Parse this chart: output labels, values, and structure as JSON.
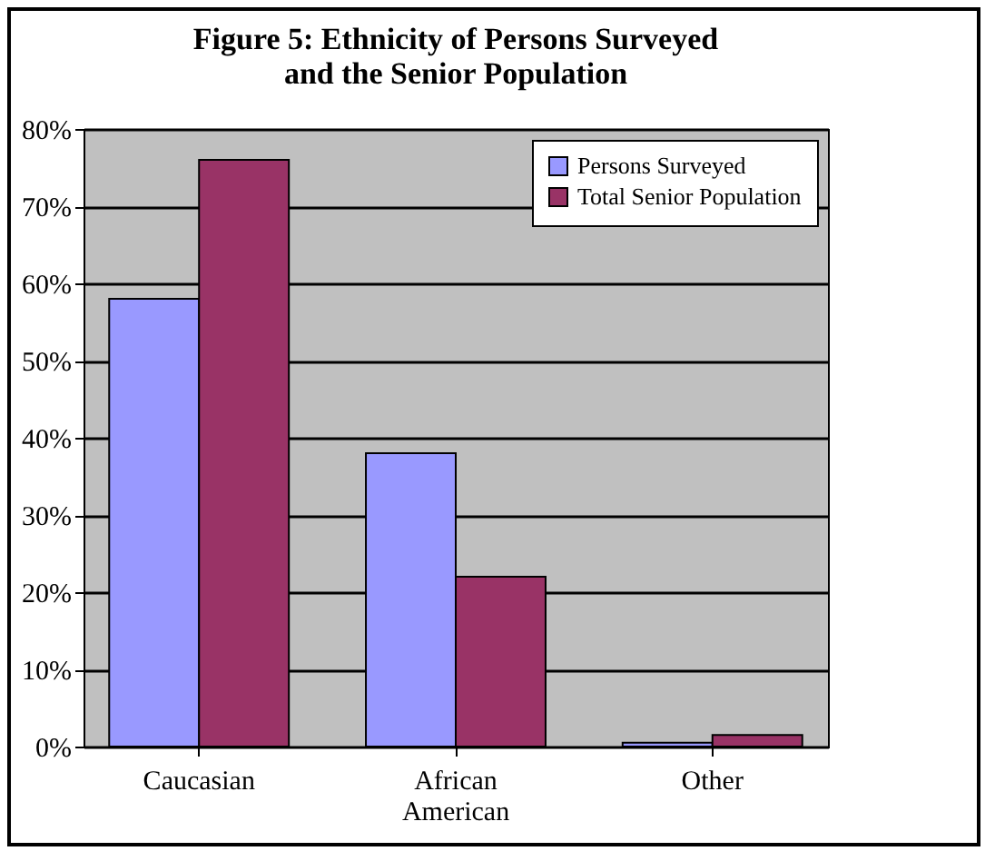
{
  "chart_data": {
    "type": "bar",
    "title": [
      "Figure 5: Ethnicity of Persons Surveyed",
      "and the Senior Population"
    ],
    "categories": [
      "Caucasian",
      "African American",
      "Other"
    ],
    "series": [
      {
        "name": "Persons Surveyed",
        "color": "#9999ff",
        "values": [
          58,
          38,
          0.5
        ]
      },
      {
        "name": "Total Senior Population",
        "color": "#993366",
        "values": [
          76,
          22,
          1.5
        ]
      }
    ],
    "ylim": [
      0,
      80
    ],
    "yticks": [
      {
        "value": 0,
        "label": "0%"
      },
      {
        "value": 10,
        "label": "10%"
      },
      {
        "value": 20,
        "label": "20%"
      },
      {
        "value": 30,
        "label": "30%"
      },
      {
        "value": 40,
        "label": "40%"
      },
      {
        "value": 50,
        "label": "50%"
      },
      {
        "value": 60,
        "label": "60%"
      },
      {
        "value": 70,
        "label": "70%"
      },
      {
        "value": 80,
        "label": "80%"
      }
    ],
    "grid": true,
    "legend": "top right"
  }
}
